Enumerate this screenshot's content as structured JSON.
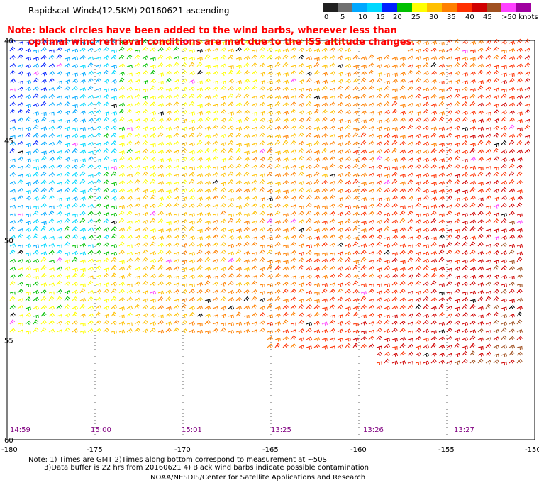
{
  "title": "Rapidscat Winds(12.5KM) 20160621 ascending",
  "legend": {
    "labels": [
      "0",
      "5",
      "10",
      "15",
      "20",
      "25",
      "30",
      "35",
      "40",
      "45",
      ">50 knots"
    ],
    "colors": [
      "#202020",
      "#707070",
      "#00a8ff",
      "#00d8ff",
      "#0020ff",
      "#00c000",
      "#ffff00",
      "#ffc000",
      "#ff8000",
      "#ff3000",
      "#d00000",
      "#a05020",
      "#ff40ff",
      "#a000a0"
    ]
  },
  "note": {
    "line1": "Note: black circles have been added to the wind barbs, wherever less than",
    "line2": "optimal wind retrieval conditions are met due to the ISS altitude changes."
  },
  "lat_labels": [
    "40",
    "45",
    "50",
    "55",
    "60"
  ],
  "lon_labels": [
    "-180",
    "-175",
    "-170",
    "-165",
    "-160",
    "-155",
    "-150"
  ],
  "time_labels": [
    "14:59",
    "15:00",
    "15:01",
    "13:25",
    "13:26",
    "13:27"
  ],
  "footnotes": {
    "line1": "Note: 1) Times are GMT 2)Times along bottom correspond to measurement at ~50S",
    "line2": "3)Data buffer is 22 hrs from 20160621 4) Black wind barbs indicate possible contamination",
    "line3": "NOAA/NESDIS/Center for Satellite Applications and Research"
  },
  "colors": {
    "note_red": "#ff0000",
    "time_purple": "#800080"
  }
}
